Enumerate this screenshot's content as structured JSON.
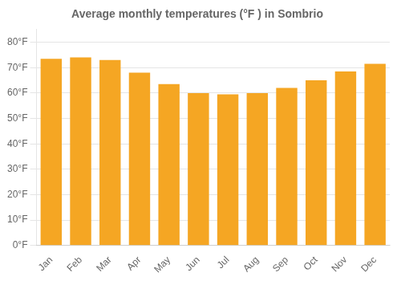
{
  "chart_data": {
    "type": "bar",
    "title": "Average monthly temperatures (°F ) in Sombrio",
    "categories": [
      "Jan",
      "Feb",
      "Mar",
      "Apr",
      "May",
      "Jun",
      "Jul",
      "Aug",
      "Sep",
      "Oct",
      "Nov",
      "Dec"
    ],
    "values": [
      73.5,
      74.0,
      73.0,
      68.0,
      63.5,
      60.0,
      59.5,
      60.0,
      62.0,
      65.0,
      68.5,
      71.5
    ],
    "color": "#F5A623",
    "ylim": [
      0,
      85
    ],
    "yticks": [
      {
        "value": 0,
        "label": "0°F"
      },
      {
        "value": 10,
        "label": "10°F"
      },
      {
        "value": 20,
        "label": "20°F"
      },
      {
        "value": 30,
        "label": "30°F"
      },
      {
        "value": 40,
        "label": "40°F"
      },
      {
        "value": 50,
        "label": "50°F"
      },
      {
        "value": 60,
        "label": "60°F"
      },
      {
        "value": 70,
        "label": "70°F"
      },
      {
        "value": 80,
        "label": "80°F"
      }
    ],
    "grid": true
  }
}
